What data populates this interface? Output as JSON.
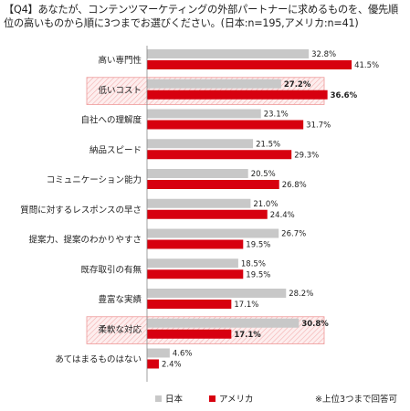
{
  "title": "【Q4】あなたが、コンテンツマーケティングの外部パートナーに求めるものを、優先順位の高いものから順に3つまでお選びください。(日本:n=195,アメリカ:n=41)",
  "colors": {
    "japan": "#c8c8c8",
    "usa": "#d7000f",
    "highlight_fill": "#fdeeee",
    "highlight_stroke": "#ef9a9a",
    "axis": "#888888"
  },
  "chart_data": {
    "type": "bar",
    "orientation": "horizontal",
    "categories": [
      "高い専門性",
      "低いコスト",
      "自社への理解度",
      "納品スピード",
      "コミュニケーション能力",
      "質問に対するレスポンスの早さ",
      "提案力、提案のわかりやすさ",
      "既存取引の有無",
      "豊富な実績",
      "柔軟な対応",
      "あてはまるものはない"
    ],
    "series": [
      {
        "name": "日本",
        "values": [
          32.8,
          27.2,
          23.1,
          21.5,
          20.5,
          21.0,
          26.7,
          18.5,
          28.2,
          30.8,
          4.6
        ]
      },
      {
        "name": "アメリカ",
        "values": [
          41.5,
          36.6,
          31.7,
          29.3,
          26.8,
          24.4,
          19.5,
          19.5,
          17.1,
          17.1,
          2.4
        ]
      }
    ],
    "value_labels": {
      "japan": [
        "32.8%",
        "27.2%",
        "23.1%",
        "21.5%",
        "20.5%",
        "21.0%",
        "26.7%",
        "18.5%",
        "28.2%",
        "30.8%",
        "4.6%"
      ],
      "usa": [
        "41.5%",
        "36.6%",
        "31.7%",
        "29.3%",
        "26.8%",
        "24.4%",
        "19.5%",
        "19.5%",
        "17.1%",
        "17.1%",
        "2.4%"
      ]
    },
    "highlighted_categories": [
      "低いコスト",
      "柔軟な対応"
    ],
    "xlim": [
      0,
      45
    ],
    "legend_position": "bottom-left"
  },
  "legend": {
    "japan": "日本",
    "usa": "アメリカ",
    "note": "※上位3つまで回答可"
  }
}
